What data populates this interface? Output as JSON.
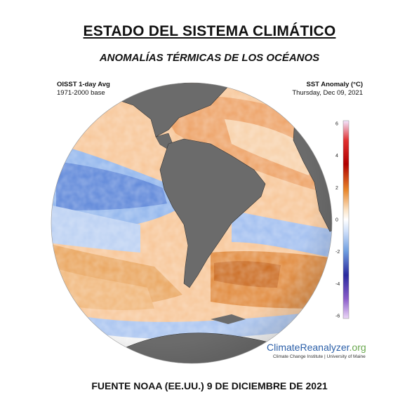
{
  "header": {
    "title": "ESTADO DEL SISTEMA CLIMÁTICO",
    "subtitle": "ANOMALÍAS TÉRMICAS DE LOS OCÉANOS"
  },
  "map_info": {
    "left_line1": "OISST 1-day Avg",
    "left_line2": "1971-2000 base",
    "right_line1": "SST Anomaly (°C)",
    "right_line2": "Thursday, Dec 09, 2021"
  },
  "colorbar": {
    "ticks": [
      "6",
      "4",
      "2",
      "0",
      "-2",
      "-4",
      "-6"
    ],
    "colors": {
      "max": "#e9d7ff",
      "hot": "#b30000",
      "warm": "#e88a2d",
      "neutral": "#ffffff",
      "cool": "#6f9ee0",
      "cold": "#2a2a9e",
      "min": "#e3c8f2"
    }
  },
  "brand": {
    "climate": "Climate",
    "reanalyzer": "Reanalyzer",
    "org": ".org",
    "sub": "Climate Change Institute | University of Maine"
  },
  "footer": {
    "source": "FUENTE NOAA (EE.UU.) 9 DE DICIEMBRE DE 2021"
  },
  "colors": {
    "land": "#6b6b6b",
    "ice": "#f2f2f2",
    "ocean_warm": "#e9a45c",
    "ocean_cool": "#8fb4ec"
  }
}
